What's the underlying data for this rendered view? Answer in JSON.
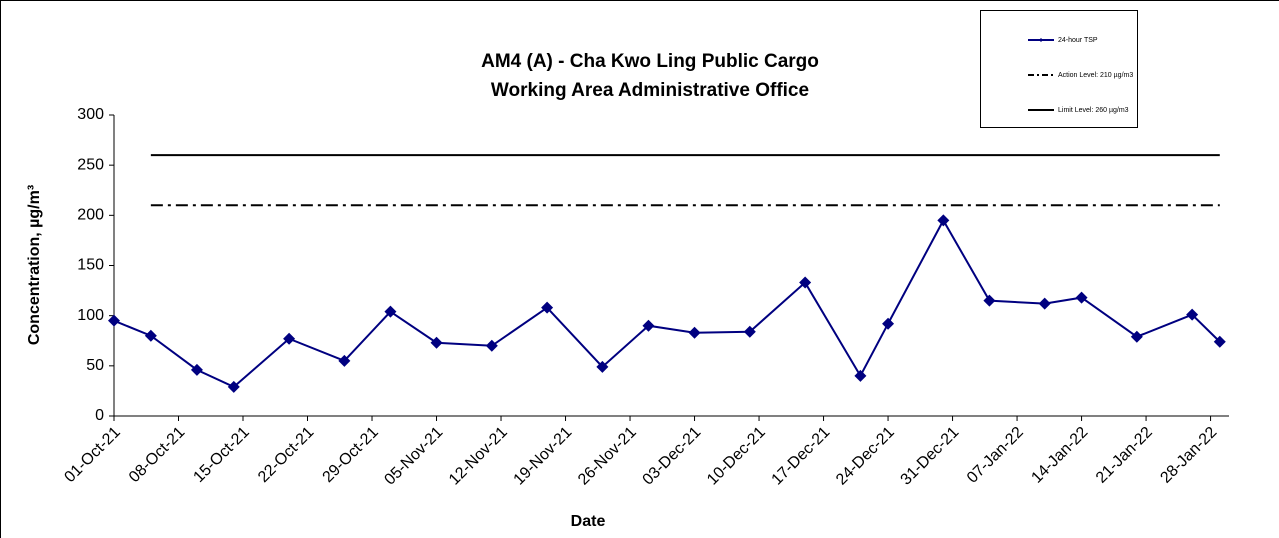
{
  "chart_data": {
    "type": "line",
    "title": [
      "AM4 (A) - Cha Kwo Ling Public Cargo",
      "Working Area Administrative Office"
    ],
    "x_label": "Date",
    "y_label": "Concentration, µg/m³",
    "x": [
      "2021-10-01",
      "2021-10-05",
      "2021-10-10",
      "2021-10-14",
      "2021-10-20",
      "2021-10-26",
      "2021-10-31",
      "2021-11-05",
      "2021-11-11",
      "2021-11-17",
      "2021-11-23",
      "2021-11-28",
      "2021-12-03",
      "2021-12-09",
      "2021-12-15",
      "2021-12-21",
      "2021-12-24",
      "2021-12-30",
      "2022-01-04",
      "2022-01-10",
      "2022-01-14",
      "2022-01-20",
      "2022-01-26",
      "2022-01-29"
    ],
    "series": [
      {
        "name": "24-hour TSP",
        "color": "#000080",
        "marker": "diamond",
        "values": [
          95,
          80,
          46,
          29,
          77,
          55,
          104,
          73,
          70,
          108,
          49,
          90,
          83,
          84,
          133,
          40,
          92,
          195,
          115,
          112,
          118,
          79,
          101,
          74
        ]
      }
    ],
    "reference_lines": [
      {
        "name": "Action Level: 210 µg/m3",
        "value": 210,
        "style": "dashdot",
        "color": "#000000"
      },
      {
        "name": "Limit Level: 260 µg/m3",
        "value": 260,
        "style": "solid",
        "color": "#000000"
      }
    ],
    "xlim": [
      "2021-10-01",
      "2022-01-30"
    ],
    "xticks": [
      {
        "value": "2021-10-01",
        "label": "01-Oct-21"
      },
      {
        "value": "2021-10-08",
        "label": "08-Oct-21"
      },
      {
        "value": "2021-10-15",
        "label": "15-Oct-21"
      },
      {
        "value": "2021-10-22",
        "label": "22-Oct-21"
      },
      {
        "value": "2021-10-29",
        "label": "29-Oct-21"
      },
      {
        "value": "2021-11-05",
        "label": "05-Nov-21"
      },
      {
        "value": "2021-11-12",
        "label": "12-Nov-21"
      },
      {
        "value": "2021-11-19",
        "label": "19-Nov-21"
      },
      {
        "value": "2021-11-26",
        "label": "26-Nov-21"
      },
      {
        "value": "2021-12-03",
        "label": "03-Dec-21"
      },
      {
        "value": "2021-12-10",
        "label": "10-Dec-21"
      },
      {
        "value": "2021-12-17",
        "label": "17-Dec-21"
      },
      {
        "value": "2021-12-24",
        "label": "24-Dec-21"
      },
      {
        "value": "2021-12-31",
        "label": "31-Dec-21"
      },
      {
        "value": "2022-01-07",
        "label": "07-Jan-22"
      },
      {
        "value": "2022-01-14",
        "label": "14-Jan-22"
      },
      {
        "value": "2022-01-21",
        "label": "21-Jan-22"
      },
      {
        "value": "2022-01-28",
        "label": "28-Jan-22"
      }
    ],
    "ylim": [
      0,
      300
    ],
    "yticks": [
      0,
      50,
      100,
      150,
      200,
      250,
      300
    ],
    "legend": "top-right"
  }
}
